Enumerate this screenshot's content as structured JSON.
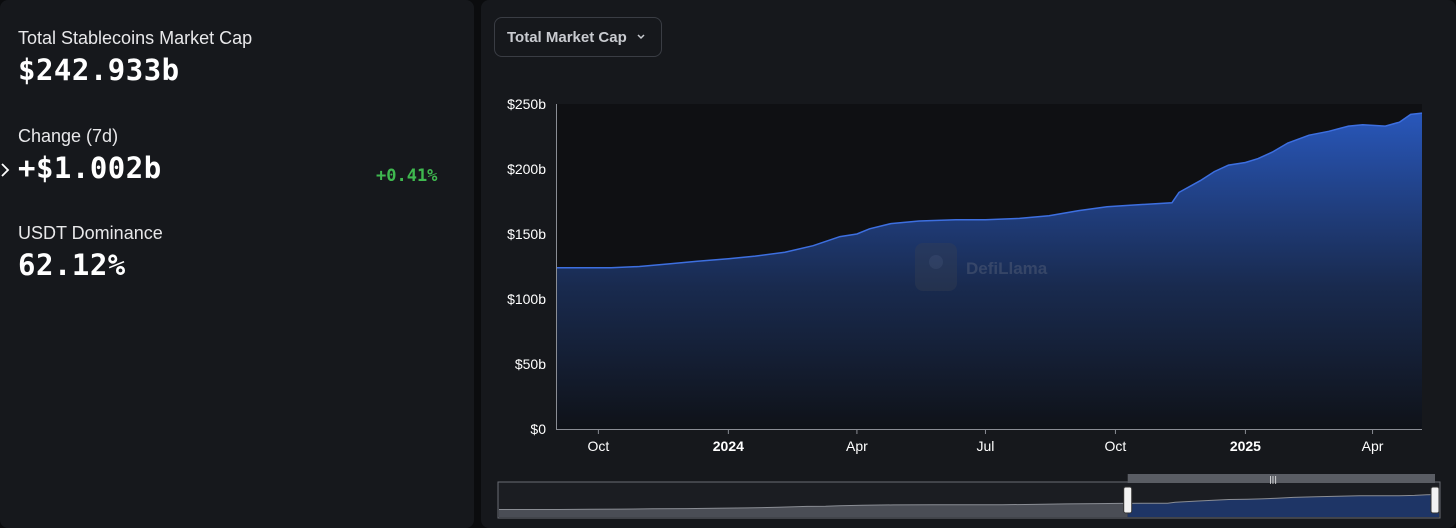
{
  "stats": {
    "market_cap_label": "Total Stablecoins Market Cap",
    "market_cap_value": "$242.933b",
    "change_label": "Change (7d)",
    "change_value": "+$1.002b",
    "change_pct": "+0.41%",
    "dominance_label": "USDT Dominance",
    "dominance_value": "62.12%"
  },
  "dropdown": {
    "label": "Total Market Cap"
  },
  "watermark": "DefiLlama",
  "colors": {
    "area_top": "#2a5bc4",
    "line": "#3d6fe0",
    "positive": "#3fb84f"
  },
  "chart_data": {
    "type": "area",
    "title": "",
    "xlabel": "",
    "ylabel": "",
    "ylim": [
      0,
      250
    ],
    "yticks": [
      "$0",
      "$50b",
      "$100b",
      "$150b",
      "$200b",
      "$250b"
    ],
    "xticks": [
      {
        "label": "Oct",
        "bold": false,
        "date": "2023-10-01"
      },
      {
        "label": "2024",
        "bold": true,
        "date": "2024-01-01"
      },
      {
        "label": "Apr",
        "bold": false,
        "date": "2024-04-01"
      },
      {
        "label": "Jul",
        "bold": false,
        "date": "2024-07-01"
      },
      {
        "label": "Oct",
        "bold": false,
        "date": "2024-10-01"
      },
      {
        "label": "2025",
        "bold": true,
        "date": "2025-01-01"
      },
      {
        "label": "Apr",
        "bold": false,
        "date": "2025-04-01"
      }
    ],
    "x_start": "2023-09-01",
    "x_end": "2025-05-06",
    "series": [
      {
        "values": [
          [
            "2023-09-01",
            124
          ],
          [
            "2023-09-20",
            124
          ],
          [
            "2023-10-10",
            124
          ],
          [
            "2023-10-30",
            125
          ],
          [
            "2023-11-20",
            127
          ],
          [
            "2023-12-10",
            129
          ],
          [
            "2024-01-01",
            131
          ],
          [
            "2024-01-20",
            133
          ],
          [
            "2024-02-10",
            136
          ],
          [
            "2024-03-01",
            141
          ],
          [
            "2024-03-20",
            148
          ],
          [
            "2024-04-01",
            150
          ],
          [
            "2024-04-10",
            154
          ],
          [
            "2024-04-25",
            158
          ],
          [
            "2024-05-15",
            160
          ],
          [
            "2024-06-10",
            161
          ],
          [
            "2024-07-01",
            161
          ],
          [
            "2024-07-25",
            162
          ],
          [
            "2024-08-15",
            164
          ],
          [
            "2024-09-05",
            168
          ],
          [
            "2024-09-25",
            171
          ],
          [
            "2024-10-10",
            172
          ],
          [
            "2024-10-25",
            173
          ],
          [
            "2024-11-10",
            174
          ],
          [
            "2024-11-15",
            182
          ],
          [
            "2024-11-30",
            191
          ],
          [
            "2024-12-10",
            198
          ],
          [
            "2024-12-20",
            203
          ],
          [
            "2025-01-01",
            205
          ],
          [
            "2025-01-10",
            208
          ],
          [
            "2025-01-20",
            213
          ],
          [
            "2025-01-31",
            220
          ],
          [
            "2025-02-15",
            226
          ],
          [
            "2025-03-01",
            229
          ],
          [
            "2025-03-15",
            233
          ],
          [
            "2025-03-25",
            234
          ],
          [
            "2025-04-10",
            233
          ],
          [
            "2025-04-20",
            236
          ],
          [
            "2025-04-28",
            242
          ],
          [
            "2025-05-06",
            243
          ]
        ]
      }
    ],
    "grid": false,
    "range_selector": {
      "start": "2024-10-15",
      "end": "2025-05-06"
    }
  }
}
